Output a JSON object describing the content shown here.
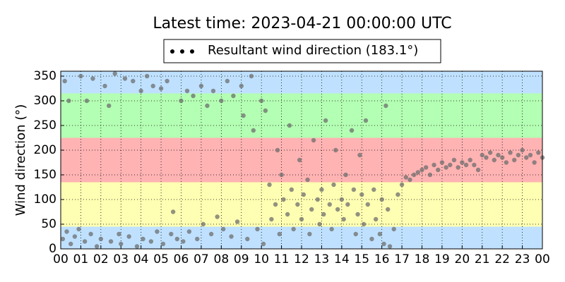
{
  "chart_data": {
    "type": "scatter",
    "title": "Latest time: 2023-04-21 00:00:00 UTC",
    "y_label": "Wind direction (°)",
    "legend_marker_color": "#000000",
    "grid": true,
    "xlim": [
      0,
      24
    ],
    "xticks": [
      {
        "value": 0,
        "label": "00"
      },
      {
        "value": 1,
        "label": "01"
      },
      {
        "value": 2,
        "label": "02"
      },
      {
        "value": 3,
        "label": "03"
      },
      {
        "value": 4,
        "label": "04"
      },
      {
        "value": 5,
        "label": "05"
      },
      {
        "value": 6,
        "label": "06"
      },
      {
        "value": 7,
        "label": "07"
      },
      {
        "value": 8,
        "label": "08"
      },
      {
        "value": 9,
        "label": "09"
      },
      {
        "value": 10,
        "label": "10"
      },
      {
        "value": 11,
        "label": "11"
      },
      {
        "value": 12,
        "label": "12"
      },
      {
        "value": 13,
        "label": "13"
      },
      {
        "value": 14,
        "label": "14"
      },
      {
        "value": 15,
        "label": "15"
      },
      {
        "value": 16,
        "label": "16"
      },
      {
        "value": 17,
        "label": "17"
      },
      {
        "value": 18,
        "label": "18"
      },
      {
        "value": 19,
        "label": "19"
      },
      {
        "value": 20,
        "label": "20"
      },
      {
        "value": 21,
        "label": "21"
      },
      {
        "value": 22,
        "label": "22"
      },
      {
        "value": 23,
        "label": "23"
      },
      {
        "value": 24,
        "label": "00"
      }
    ],
    "ylim": [
      0,
      360
    ],
    "yticks": [
      0,
      50,
      100,
      150,
      200,
      250,
      300,
      350
    ],
    "bands": [
      {
        "from": 0,
        "to": 45,
        "color": "#bfe1ff"
      },
      {
        "from": 45,
        "to": 135,
        "color": "#ffffb3"
      },
      {
        "from": 135,
        "to": 225,
        "color": "#ffb3b3"
      },
      {
        "from": 225,
        "to": 315,
        "color": "#b3ffb3"
      },
      {
        "from": 315,
        "to": 360,
        "color": "#bfe1ff"
      }
    ],
    "series": [
      {
        "name": "Resultant wind direction (183.1°)",
        "color": "#6e6e6e",
        "x": [
          0.1,
          0.3,
          0.5,
          0.2,
          0.4,
          0.7,
          0.9,
          1.0,
          1.2,
          1.3,
          1.5,
          1.6,
          1.8,
          2.0,
          2.2,
          2.4,
          2.5,
          2.7,
          2.9,
          3.0,
          3.2,
          3.4,
          3.6,
          3.8,
          4.0,
          4.1,
          4.3,
          4.5,
          4.6,
          4.8,
          5.0,
          5.1,
          5.3,
          5.5,
          5.6,
          5.8,
          6.0,
          6.1,
          6.3,
          6.4,
          6.6,
          6.8,
          7.0,
          7.1,
          7.3,
          7.5,
          7.6,
          7.8,
          8.0,
          8.1,
          8.3,
          8.5,
          8.6,
          8.8,
          9.0,
          9.1,
          9.3,
          9.5,
          9.6,
          9.8,
          10.0,
          10.1,
          10.2,
          10.4,
          10.5,
          10.7,
          10.8,
          10.9,
          11.0,
          11.1,
          11.3,
          11.4,
          11.5,
          11.6,
          11.8,
          11.9,
          12.0,
          12.1,
          12.3,
          12.4,
          12.5,
          12.6,
          12.8,
          12.9,
          13.0,
          13.1,
          13.2,
          13.4,
          13.5,
          13.6,
          13.7,
          13.8,
          14.0,
          14.1,
          14.2,
          14.3,
          14.5,
          14.6,
          14.7,
          14.8,
          14.9,
          15.0,
          15.1,
          15.2,
          15.3,
          15.5,
          15.6,
          15.7,
          15.9,
          16.0,
          16.1,
          16.2,
          16.3,
          16.4,
          16.6,
          16.8,
          17.0,
          17.2,
          17.4,
          17.6,
          17.8,
          18.0,
          18.2,
          18.4,
          18.6,
          18.8,
          19.0,
          19.2,
          19.4,
          19.6,
          19.8,
          20.0,
          20.2,
          20.4,
          20.6,
          20.8,
          21.0,
          21.2,
          21.4,
          21.6,
          21.8,
          22.0,
          22.2,
          22.4,
          22.6,
          22.8,
          23.0,
          23.2,
          23.4,
          23.6,
          23.8,
          24.0
        ],
        "values": [
          20,
          35,
          10,
          340,
          300,
          25,
          40,
          350,
          15,
          300,
          30,
          345,
          5,
          20,
          330,
          290,
          15,
          355,
          30,
          10,
          345,
          25,
          340,
          5,
          320,
          20,
          350,
          15,
          330,
          35,
          325,
          10,
          340,
          30,
          75,
          20,
          300,
          15,
          320,
          35,
          310,
          20,
          330,
          50,
          290,
          30,
          320,
          65,
          300,
          40,
          340,
          25,
          310,
          55,
          330,
          270,
          20,
          350,
          240,
          40,
          300,
          10,
          280,
          130,
          60,
          90,
          200,
          30,
          150,
          100,
          70,
          250,
          120,
          40,
          90,
          180,
          60,
          110,
          140,
          30,
          80,
          220,
          100,
          50,
          120,
          70,
          260,
          90,
          40,
          130,
          200,
          80,
          100,
          60,
          150,
          90,
          240,
          120,
          30,
          70,
          190,
          110,
          50,
          260,
          90,
          20,
          120,
          60,
          30,
          100,
          10,
          290,
          80,
          5,
          40,
          110,
          130,
          145,
          140,
          150,
          155,
          160,
          165,
          150,
          170,
          160,
          175,
          165,
          170,
          180,
          165,
          175,
          170,
          180,
          170,
          160,
          190,
          185,
          195,
          180,
          190,
          185,
          175,
          195,
          180,
          190,
          200,
          185,
          190,
          175,
          195,
          185
        ]
      }
    ]
  }
}
